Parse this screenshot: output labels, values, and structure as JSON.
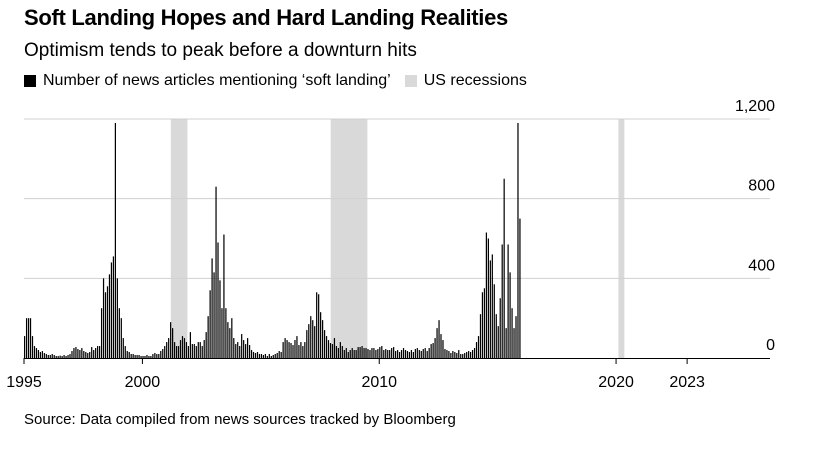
{
  "title": "Soft Landing Hopes and Hard Landing Realities",
  "subtitle": "Optimism tends to peak before a downturn hits",
  "legend": [
    {
      "label": "Number of news articles mentioning ‘soft landing’",
      "color": "#000000"
    },
    {
      "label": "US recessions",
      "color": "#d9d9d9"
    }
  ],
  "source": "Source: Data compiled from news sources tracked by Bloomberg",
  "chart_data": {
    "type": "bar",
    "title": "Soft Landing Hopes and Hard Landing Realities",
    "subtitle": "Optimism tends to peak before a downturn hits",
    "xlabel": "",
    "ylabel": "",
    "x_range": [
      1995.0,
      2026.5
    ],
    "ylim": [
      0,
      1200
    ],
    "grid": true,
    "legend_position": "top-left",
    "x_ticks": [
      {
        "value": 1995,
        "label": "1995"
      },
      {
        "value": 2000,
        "label": "2000"
      },
      {
        "value": 2010,
        "label": "2010"
      },
      {
        "value": 2020,
        "label": "2020"
      },
      {
        "value": 2023,
        "label": "2023"
      }
    ],
    "y_ticks": [
      {
        "value": 0,
        "label": "0"
      },
      {
        "value": 400,
        "label": "400"
      },
      {
        "value": 800,
        "label": "800"
      },
      {
        "value": 1200,
        "label": "1,200"
      }
    ],
    "recessions": [
      {
        "start": 2001.2,
        "end": 2001.9
      },
      {
        "start": 2007.95,
        "end": 2009.5
      },
      {
        "start": 2020.1,
        "end": 2020.35
      }
    ],
    "series": [
      {
        "name": "Number of news articles mentioning ‘soft landing’",
        "color": "#000000",
        "x_start": 1995.0,
        "x_step": 0.08333,
        "values": [
          110,
          200,
          200,
          200,
          110,
          60,
          50,
          40,
          30,
          35,
          25,
          20,
          15,
          15,
          20,
          15,
          10,
          10,
          12,
          10,
          15,
          10,
          15,
          20,
          35,
          50,
          55,
          45,
          40,
          50,
          35,
          30,
          25,
          30,
          55,
          40,
          50,
          60,
          60,
          250,
          400,
          330,
          360,
          420,
          480,
          510,
          1180,
          400,
          250,
          200,
          100,
          60,
          35,
          30,
          20,
          20,
          15,
          15,
          15,
          10,
          10,
          10,
          15,
          10,
          10,
          20,
          25,
          20,
          20,
          35,
          45,
          60,
          80,
          100,
          180,
          150,
          80,
          60,
          60,
          90,
          110,
          100,
          80,
          60,
          130,
          70,
          70,
          60,
          80,
          80,
          60,
          90,
          130,
          210,
          340,
          500,
          430,
          860,
          580,
          390,
          250,
          620,
          250,
          180,
          150,
          200,
          100,
          70,
          80,
          60,
          120,
          90,
          70,
          100,
          65,
          40,
          30,
          25,
          30,
          20,
          20,
          15,
          20,
          10,
          20,
          10,
          15,
          20,
          25,
          35,
          30,
          80,
          100,
          90,
          80,
          75,
          65,
          90,
          110,
          65,
          80,
          60,
          80,
          140,
          170,
          210,
          190,
          160,
          330,
          320,
          230,
          190,
          140,
          110,
          90,
          75,
          70,
          100,
          60,
          50,
          80,
          60,
          40,
          50,
          30,
          40,
          50,
          40,
          40,
          55,
          55,
          60,
          50,
          50,
          45,
          40,
          50,
          50,
          40,
          45,
          55,
          60,
          40,
          45,
          40,
          40,
          50,
          55,
          35,
          40,
          30,
          40,
          50,
          40,
          35,
          30,
          40,
          30,
          45,
          50,
          40,
          35,
          45,
          50,
          35,
          50,
          70,
          75,
          100,
          150,
          190,
          120,
          90,
          45,
          40,
          35,
          25,
          35,
          30,
          25,
          40,
          20,
          20,
          25,
          30,
          35,
          30,
          40,
          50,
          80,
          110,
          220,
          330,
          350,
          630,
          600,
          490,
          520,
          370,
          220,
          160,
          300,
          570,
          900,
          150,
          570,
          430,
          250,
          150,
          210,
          1180,
          700
        ]
      }
    ]
  }
}
